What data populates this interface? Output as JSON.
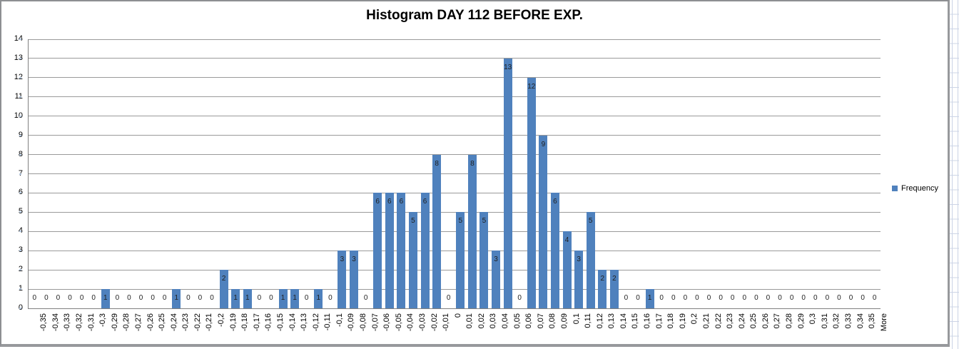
{
  "chart": {
    "title": "Histogram DAY 112 BEFORE EXP.",
    "legend": {
      "label": "Frequency"
    },
    "colors": {
      "bar": "#4F81BD",
      "gridline": "#9A9A9A",
      "axis": "#808080",
      "data_label": "#1F1F1F",
      "chart_border": "#8D8F92",
      "sheet_grid": "#CCD4E6",
      "y_tick": "#B8CCE4"
    }
  },
  "chart_data": {
    "type": "bar",
    "title": "Histogram DAY 112 BEFORE EXP.",
    "series_name": "Frequency",
    "categories": [
      "-0,35",
      "-0,34",
      "-0,33",
      "-0,32",
      "-0,31",
      "-0,3",
      "-0,29",
      "-0,28",
      "-0,27",
      "-0,26",
      "-0,25",
      "-0,24",
      "-0,23",
      "-0,22",
      "-0,21",
      "-0,2",
      "-0,19",
      "-0,18",
      "-0,17",
      "-0,16",
      "-0,15",
      "-0,14",
      "-0,13",
      "-0,12",
      "-0,11",
      "-0,1",
      "-0,09",
      "-0,08",
      "-0,07",
      "-0,06",
      "-0,05",
      "-0,04",
      "-0,03",
      "-0,02",
      "-0,01",
      "0",
      "0,01",
      "0,02",
      "0,03",
      "0,04",
      "0,05",
      "0,06",
      "0,07",
      "0,08",
      "0,09",
      "0,1",
      "0,11",
      "0,12",
      "0,13",
      "0,14",
      "0,15",
      "0,16",
      "0,17",
      "0,18",
      "0,19",
      "0,2",
      "0,21",
      "0,22",
      "0,23",
      "0,24",
      "0,25",
      "0,26",
      "0,27",
      "0,28",
      "0,29",
      "0,3",
      "0,31",
      "0,32",
      "0,33",
      "0,34",
      "0,35",
      "More"
    ],
    "values": [
      0,
      0,
      0,
      0,
      0,
      0,
      1,
      0,
      0,
      0,
      0,
      0,
      1,
      0,
      0,
      0,
      2,
      1,
      1,
      0,
      0,
      1,
      1,
      0,
      1,
      0,
      3,
      3,
      0,
      6,
      6,
      6,
      5,
      6,
      8,
      0,
      5,
      8,
      5,
      3,
      13,
      0,
      12,
      9,
      6,
      4,
      3,
      5,
      2,
      2,
      0,
      0,
      1,
      0,
      0,
      0,
      0,
      0,
      0,
      0,
      0,
      0,
      0,
      0,
      0,
      0,
      0,
      0,
      0,
      0,
      0,
      0
    ],
    "xlabel": "",
    "ylabel": "",
    "ylim": [
      0,
      14
    ],
    "y_ticks": [
      0,
      1,
      2,
      3,
      4,
      5,
      6,
      7,
      8,
      9,
      10,
      11,
      12,
      13,
      14
    ],
    "grid": "horizontal",
    "legend_position": "right",
    "data_labels": "inside-end"
  }
}
